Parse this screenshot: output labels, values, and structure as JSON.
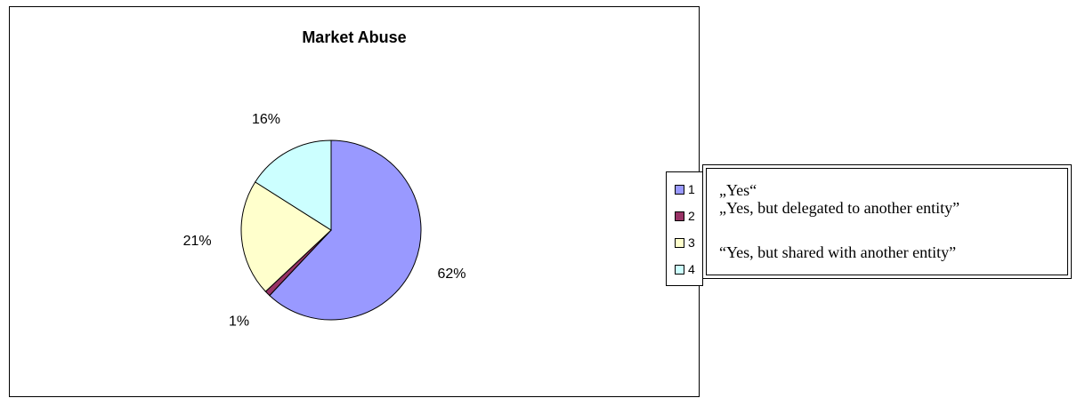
{
  "chart_data": {
    "type": "pie",
    "title": "Market Abuse",
    "categories": [
      "1",
      "2",
      "3",
      "4"
    ],
    "values": [
      62,
      1,
      21,
      16
    ],
    "labels": [
      "62%",
      "1%",
      "21%",
      "16%"
    ],
    "colors": [
      "#9999ff",
      "#993366",
      "#ffffcc",
      "#ccffff"
    ],
    "legend_position": "right"
  },
  "legend": {
    "items": [
      {
        "label": "1",
        "color": "#9999ff"
      },
      {
        "label": "2",
        "color": "#993366"
      },
      {
        "label": "3",
        "color": "#ffffcc"
      },
      {
        "label": "4",
        "color": "#ccffff"
      }
    ]
  },
  "captions": {
    "item1": "„Yes“",
    "item2": "„Yes, but delegated to another entity”",
    "item3": "“Yes, but shared with another entity”"
  }
}
